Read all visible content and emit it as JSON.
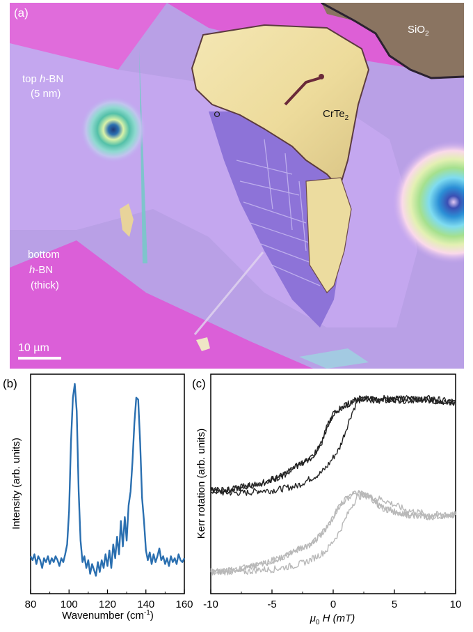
{
  "panel_a": {
    "label": "(a)",
    "annotations": {
      "sio2_main": "SiO",
      "sio2_sub": "2",
      "top_hbn_line1": "top ",
      "top_hbn_italic": "h",
      "top_hbn_rest": "-BN",
      "top_hbn_line2": "(5 nm)",
      "bottom_line1": "bottom",
      "bottom_italic": "h",
      "bottom_rest": "-BN",
      "bottom_line3": "(thick)",
      "crte_main": "CrTe",
      "crte_sub": "2"
    },
    "scale_bar_label": "10 µm"
  },
  "chart_data": [
    {
      "type": "line",
      "panel_label": "(b)",
      "xlabel": "Wavenumber (cm",
      "xlabel_sup": "-1",
      "xlabel_close": ")",
      "ylabel": "Intensity (arb. units)",
      "xlim": [
        80,
        160
      ],
      "ylim": [
        0,
        1
      ],
      "xticks": [
        "80",
        "100",
        "120",
        "140",
        "160"
      ],
      "yticks_labeled": false,
      "series": [
        {
          "color": "#2a6fb0",
          "x": [
            80,
            81,
            82,
            83,
            84,
            85,
            86,
            87,
            88,
            89,
            90,
            91,
            92,
            93,
            94,
            95,
            96,
            97,
            98,
            99,
            100,
            101,
            102,
            103,
            104,
            105,
            106,
            107,
            108,
            109,
            110,
            111,
            112,
            113,
            114,
            115,
            116,
            117,
            118,
            119,
            120,
            121,
            122,
            123,
            124,
            125,
            126,
            127,
            128,
            129,
            130,
            131,
            132,
            133,
            134,
            135,
            136,
            137,
            138,
            139,
            140,
            141,
            142,
            143,
            144,
            145,
            146,
            147,
            148,
            149,
            150,
            151,
            152,
            153,
            154,
            155,
            156,
            157,
            158,
            159,
            160
          ],
          "y": [
            0.12,
            0.1,
            0.13,
            0.08,
            0.12,
            0.1,
            0.06,
            0.11,
            0.09,
            0.12,
            0.08,
            0.11,
            0.09,
            0.12,
            0.1,
            0.07,
            0.11,
            0.09,
            0.13,
            0.18,
            0.35,
            0.7,
            0.93,
            1.0,
            0.86,
            0.45,
            0.2,
            0.09,
            0.12,
            0.06,
            0.1,
            0.03,
            0.08,
            0.05,
            0.02,
            0.09,
            0.04,
            0.1,
            0.06,
            0.13,
            0.07,
            0.15,
            0.06,
            0.18,
            0.11,
            0.22,
            0.13,
            0.3,
            0.17,
            0.32,
            0.2,
            0.38,
            0.45,
            0.6,
            0.8,
            0.93,
            0.92,
            0.7,
            0.42,
            0.3,
            0.15,
            0.1,
            0.14,
            0.08,
            0.13,
            0.09,
            0.12,
            0.16,
            0.1,
            0.12,
            0.08,
            0.11,
            0.07,
            0.12,
            0.09,
            0.11,
            0.08,
            0.13,
            0.1,
            0.09,
            0.11
          ]
        }
      ]
    },
    {
      "type": "line",
      "panel_label": "(c)",
      "xlabel_mu": "μ",
      "xlabel_sub": "0",
      "xlabel_rest": " H (mT)",
      "ylabel": "Kerr rotation (arb. units)",
      "xlim": [
        -10,
        10
      ],
      "ylim": [
        0,
        1
      ],
      "xticks": [
        "-10",
        "-5",
        "0",
        "5",
        "10"
      ],
      "yticks_labeled": false,
      "series": [
        {
          "color": "#222222",
          "branch_down": {
            "x": [
              10,
              8,
              6,
              4,
              2,
              1.5,
              1,
              0.5,
              0,
              -0.5,
              -1,
              -1.5,
              -2,
              -3,
              -4,
              -5,
              -6,
              -7,
              -8,
              -9,
              -10
            ],
            "y": [
              0.87,
              0.88,
              0.89,
              0.88,
              0.89,
              0.87,
              0.86,
              0.84,
              0.82,
              0.76,
              0.68,
              0.64,
              0.61,
              0.58,
              0.54,
              0.52,
              0.5,
              0.49,
              0.48,
              0.47,
              0.47
            ]
          },
          "branch_up": {
            "x": [
              -10,
              -9,
              -8,
              -7,
              -6,
              -5,
              -4,
              -3,
              -2,
              -1,
              -0.5,
              0,
              0.5,
              1,
              1.5,
              2,
              3,
              4,
              6,
              8,
              10
            ],
            "y": [
              0.47,
              0.46,
              0.46,
              0.46,
              0.47,
              0.47,
              0.48,
              0.49,
              0.52,
              0.55,
              0.58,
              0.62,
              0.66,
              0.74,
              0.82,
              0.88,
              0.89,
              0.89,
              0.88,
              0.89,
              0.87
            ]
          }
        },
        {
          "color": "#b8b8b8",
          "branch_down": {
            "x": [
              10,
              8,
              6,
              4,
              3,
              2,
              1.5,
              1,
              0.5,
              0,
              -0.5,
              -1,
              -1.5,
              -2,
              -3,
              -4,
              -5,
              -6,
              -7,
              -8,
              -9,
              -10
            ],
            "y": [
              0.36,
              0.35,
              0.36,
              0.39,
              0.44,
              0.46,
              0.45,
              0.43,
              0.4,
              0.35,
              0.3,
              0.27,
              0.24,
              0.22,
              0.2,
              0.17,
              0.15,
              0.13,
              0.12,
              0.11,
              0.1,
              0.1
            ]
          },
          "branch_up": {
            "x": [
              -10,
              -9,
              -8,
              -7,
              -6,
              -5,
              -4,
              -3,
              -2,
              -1,
              -0.5,
              0,
              0.5,
              1,
              1.5,
              2,
              2.5,
              3,
              4,
              6,
              8,
              10
            ],
            "y": [
              0.1,
              0.1,
              0.1,
              0.1,
              0.11,
              0.11,
              0.12,
              0.13,
              0.15,
              0.18,
              0.2,
              0.24,
              0.28,
              0.34,
              0.4,
              0.44,
              0.45,
              0.44,
              0.43,
              0.38,
              0.36,
              0.36
            ]
          }
        }
      ]
    }
  ]
}
